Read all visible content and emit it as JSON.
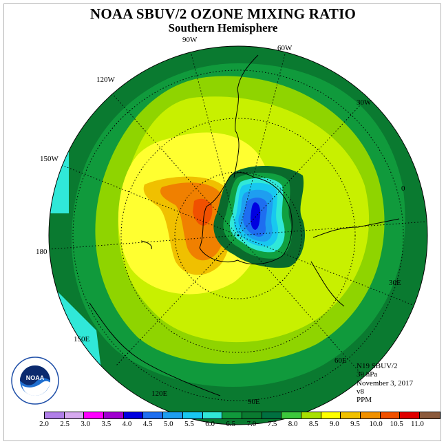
{
  "title": "NOAA SBUV/2 OZONE MIXING RATIO",
  "subtitle": "Southern Hemisphere",
  "longitude_labels": {
    "lon_90w": "90W",
    "lon_60w": "60W",
    "lon_30w": "30W",
    "lon_0": "0",
    "lon_30e": "30E",
    "lon_60e": "60E",
    "lon_90e": "90E",
    "lon_120e": "120E",
    "lon_150e": "150E",
    "lon_180": "180",
    "lon_150w": "150W",
    "lon_120w": "120W"
  },
  "info": {
    "instrument": "N19 SBUV/2",
    "level": "30 hPa",
    "date": "November 3, 2017",
    "version": "v8",
    "units": "PPM"
  },
  "colorbar": {
    "ticks": [
      "2.0",
      "2.5",
      "3.0",
      "3.5",
      "4.0",
      "4.5",
      "5.0",
      "5.5",
      "6.0",
      "6.5",
      "7.0",
      "7.5",
      "8.0",
      "8.5",
      "9.0",
      "9.5",
      "10.0",
      "10.5",
      "11.0"
    ],
    "colors": [
      "#b07ee8",
      "#d6a8ef",
      "#ff00ff",
      "#a000d0",
      "#0000e0",
      "#1e6ef0",
      "#1e9ef0",
      "#18c8f0",
      "#30e8d8",
      "#109a3c",
      "#0a7a30",
      "#007040",
      "#3cc83c",
      "#a8e000",
      "#ffff00",
      "#f0c000",
      "#f09000",
      "#f05000",
      "#e00000",
      "#8b5a3c"
    ]
  },
  "map_levels": {
    "outer_ring": "#0a7a30",
    "band_65": "#109a3c",
    "band_75": "#8fd400",
    "band_80": "#c8f000",
    "band_85": "#ffff30",
    "band_90": "#f0c000",
    "band_95": "#f08000",
    "band_100": "#f05000",
    "hole_70": "#0a6a2c",
    "hole_65": "#10a040",
    "hole_55": "#30e8d8",
    "hole_50": "#18c8f0",
    "hole_45": "#1e9ef0",
    "hole_40": "#1e6ef0",
    "hole_35": "#0000e0"
  },
  "logo_text": "NOAA"
}
